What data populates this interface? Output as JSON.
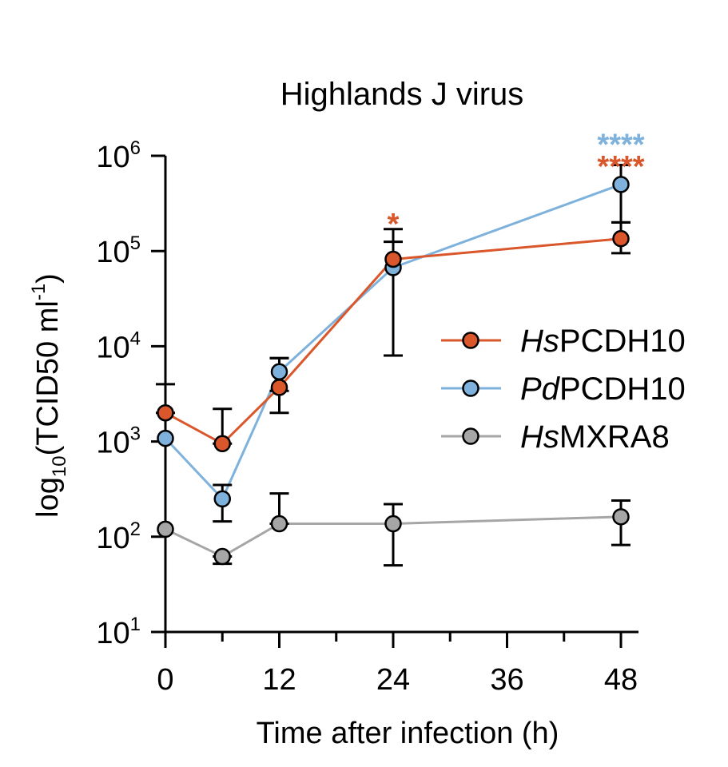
{
  "chart_data": {
    "type": "line",
    "title": "Highlands J virus",
    "xlabel": "Time after infection (h)",
    "ylabel": {
      "prefix": "log",
      "sub": "10",
      "main": "(TCID50 ml",
      "sup": "-1",
      "suffix": ")"
    },
    "x": [
      0,
      6,
      12,
      24,
      48
    ],
    "xlim": [
      0,
      48
    ],
    "x_ticks": [
      0,
      6,
      12,
      18,
      24,
      30,
      36,
      42,
      48
    ],
    "x_tick_labels": [
      {
        "value": 0,
        "label": "0"
      },
      {
        "value": 12,
        "label": "12"
      },
      {
        "value": 24,
        "label": "24"
      },
      {
        "value": 36,
        "label": "36"
      },
      {
        "value": 48,
        "label": "48"
      }
    ],
    "y_scale": "log",
    "ylim": [
      10,
      1000000
    ],
    "y_tick_labels": [
      {
        "value": 10,
        "base": "10",
        "exp": "1"
      },
      {
        "value": 100,
        "base": "10",
        "exp": "2"
      },
      {
        "value": 1000,
        "base": "10",
        "exp": "3"
      },
      {
        "value": 10000,
        "base": "10",
        "exp": "4"
      },
      {
        "value": 100000,
        "base": "10",
        "exp": "5"
      },
      {
        "value": 1000000,
        "base": "10",
        "exp": "6"
      }
    ],
    "series": [
      {
        "name": "HsPCDH10",
        "name_italic": "Hs",
        "name_rest": "PCDH10",
        "color": "#d9572b",
        "values": [
          2000,
          950,
          3700,
          82000,
          135000
        ],
        "err_low": [
          2000,
          950,
          2000,
          8000,
          95000
        ],
        "err_high": [
          4000,
          2200,
          7500,
          170000,
          200000
        ]
      },
      {
        "name": "PdPCDH10",
        "name_italic": "Pd",
        "name_rest": "PCDH10",
        "color": "#7eb2dc",
        "values": [
          1080,
          250,
          5400,
          67000,
          500000
        ],
        "err_low": [
          1080,
          145,
          3400,
          8000,
          200000
        ],
        "err_high": [
          1080,
          350,
          7500,
          125000,
          800000
        ]
      },
      {
        "name": "HsMXRA8",
        "name_italic": "Hs",
        "name_rest": "MXRA8",
        "color": "#a6a6a6",
        "values": [
          120,
          62,
          137,
          137,
          162
        ],
        "err_low": [
          120,
          52,
          137,
          50,
          82
        ],
        "err_high": [
          120,
          62,
          285,
          220,
          240
        ]
      }
    ],
    "annotations": [
      {
        "text": "*",
        "x": 24,
        "y": 250000,
        "color": "#d9572b"
      },
      {
        "text": "****",
        "x": 48,
        "y": 1700000,
        "color": "#7eb2dc"
      },
      {
        "text": "****",
        "x": 48,
        "y": 1000000,
        "color": "#d9572b"
      }
    ],
    "legend_position": "right",
    "grid": false
  }
}
